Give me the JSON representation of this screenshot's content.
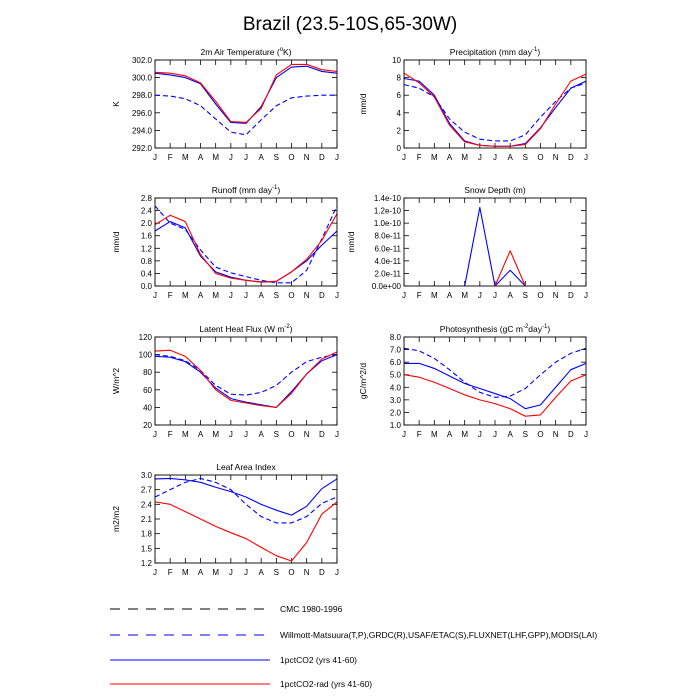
{
  "page_title": "Brazil (23.5-10S,65-30W)",
  "months": [
    "J",
    "F",
    "M",
    "A",
    "M",
    "J",
    "J",
    "A",
    "S",
    "O",
    "N",
    "D",
    "J"
  ],
  "colors": {
    "blue": "#0000ff",
    "red": "#ff0000",
    "black": "#000000"
  },
  "legend": [
    {
      "label": "CMC 1980-1996",
      "color": "#000000",
      "dash": true
    },
    {
      "label": "Willmott-Matsuura(T,P),GRDC(R),USAF/ETAC(S),FLUXNET(LHF,GPP),MODIS(LAI)",
      "color": "#0000ff",
      "dash": true
    },
    {
      "label": "1pctCO2 (yrs 41-60)",
      "color": "#0000ff",
      "dash": false
    },
    {
      "label": "1pctCO2-rad (yrs 41-60)",
      "color": "#ff0000",
      "dash": false
    }
  ],
  "chart_data": [
    {
      "type": "line",
      "title": "2m Air Temperature (°K)",
      "ylabel": "K",
      "ylim": [
        292,
        302
      ],
      "yticks": [
        "292.0",
        "294.0",
        "296.0",
        "298.0",
        "300.0",
        "302.0"
      ],
      "x": [
        "J",
        "F",
        "M",
        "A",
        "M",
        "J",
        "J",
        "A",
        "S",
        "O",
        "N",
        "D",
        "J"
      ],
      "series": [
        {
          "name": "Willmott-Matsuura(T,P),GRDC(R),USAF/ETAC(S),FLUXNET(LHF,GPP),MODIS(LAI)",
          "color": "#0000ff",
          "dash": true,
          "values": [
            298.0,
            297.9,
            297.6,
            296.8,
            295.3,
            293.8,
            293.5,
            295.2,
            296.8,
            297.7,
            297.9,
            298.0,
            298.0
          ]
        },
        {
          "name": "1pctCO2 (yrs 41-60)",
          "color": "#0000ff",
          "dash": false,
          "values": [
            300.5,
            300.3,
            300.0,
            299.3,
            297.0,
            294.9,
            294.8,
            296.7,
            300.0,
            301.2,
            301.3,
            300.7,
            300.5
          ]
        },
        {
          "name": "1pctCO2-rad (yrs 41-60)",
          "color": "#ff0000",
          "dash": false,
          "values": [
            300.6,
            300.5,
            300.2,
            299.4,
            297.3,
            295.0,
            294.9,
            296.5,
            300.3,
            301.5,
            301.5,
            300.9,
            300.7
          ]
        }
      ]
    },
    {
      "type": "line",
      "title": "Precipitation (mm day-1)",
      "ylabel": "mm/d",
      "ylim": [
        0,
        10
      ],
      "yticks": [
        "0",
        "2",
        "4",
        "6",
        "8",
        "10"
      ],
      "x": [
        "J",
        "F",
        "M",
        "A",
        "M",
        "J",
        "J",
        "A",
        "S",
        "O",
        "N",
        "D",
        "J"
      ],
      "series": [
        {
          "name": "Willmott-Matsuura(T,P),GRDC(R),USAF/ETAC(S),FLUXNET(LHF,GPP),MODIS(LAI)",
          "color": "#0000ff",
          "dash": true,
          "values": [
            7.2,
            6.8,
            5.8,
            3.3,
            1.8,
            1.0,
            0.8,
            0.8,
            1.5,
            3.5,
            5.3,
            6.8,
            7.4
          ]
        },
        {
          "name": "1pctCO2 (yrs 41-60)",
          "color": "#0000ff",
          "dash": false,
          "values": [
            7.9,
            7.6,
            6.0,
            2.8,
            0.8,
            0.3,
            0.2,
            0.2,
            0.5,
            2.3,
            4.6,
            6.8,
            7.6
          ]
        },
        {
          "name": "1pctCO2-rad (yrs 41-60)",
          "color": "#ff0000",
          "dash": false,
          "values": [
            8.5,
            7.4,
            5.8,
            2.6,
            0.7,
            0.3,
            0.2,
            0.2,
            0.4,
            2.2,
            5.0,
            7.6,
            8.4
          ]
        }
      ]
    },
    {
      "type": "line",
      "title": "Runoff (mm day-1)",
      "ylabel": "mm/d",
      "ylim": [
        0,
        2.8
      ],
      "yticks": [
        "0.0",
        "0.4",
        "0.8",
        "1.2",
        "1.6",
        "2.0",
        "2.4",
        "2.8"
      ],
      "x": [
        "J",
        "F",
        "M",
        "A",
        "M",
        "J",
        "J",
        "A",
        "S",
        "O",
        "N",
        "D",
        "J"
      ],
      "series": [
        {
          "name": "Willmott-Matsuura(T,P),GRDC(R),USAF/ETAC(S),FLUXNET(LHF,GPP),MODIS(LAI)",
          "color": "#0000ff",
          "dash": true,
          "values": [
            2.55,
            2.0,
            1.8,
            1.15,
            0.6,
            0.42,
            0.3,
            0.18,
            0.1,
            0.1,
            0.5,
            1.5,
            2.55
          ]
        },
        {
          "name": "1pctCO2 (yrs 41-60)",
          "color": "#0000ff",
          "dash": false,
          "values": [
            1.75,
            2.05,
            1.85,
            0.95,
            0.45,
            0.28,
            0.18,
            0.13,
            0.15,
            0.45,
            0.8,
            1.3,
            1.75
          ]
        },
        {
          "name": "1pctCO2-rad (yrs 41-60)",
          "color": "#ff0000",
          "dash": false,
          "values": [
            1.95,
            2.25,
            2.05,
            1.0,
            0.4,
            0.25,
            0.18,
            0.12,
            0.15,
            0.45,
            0.85,
            1.45,
            2.3
          ]
        }
      ]
    },
    {
      "type": "line",
      "title": "Snow Depth (m)",
      "ylabel": "mm/d",
      "ylim": [
        0,
        1.4e-10
      ],
      "yticks": [
        "0.0e+00",
        "2.0e-11",
        "4.0e-11",
        "6.0e-11",
        "8.0e-11",
        "1.0e-10",
        "1.2e-10",
        "1.4e-10"
      ],
      "x": [
        "J",
        "F",
        "M",
        "A",
        "M",
        "J",
        "J",
        "A",
        "S",
        "O",
        "N",
        "D",
        "J"
      ],
      "series": [
        {
          "name": "1pctCO2 (yrs 41-60)",
          "color": "#0000ff",
          "dash": false,
          "values": [
            null,
            null,
            null,
            null,
            0,
            1.25e-10,
            0,
            2.5e-11,
            0,
            null,
            null,
            null,
            null
          ]
        },
        {
          "name": "1pctCO2-rad (yrs 41-60)",
          "color": "#ff0000",
          "dash": false,
          "values": [
            null,
            null,
            null,
            null,
            null,
            null,
            0,
            5.6e-11,
            0,
            null,
            null,
            null,
            null
          ]
        }
      ]
    },
    {
      "type": "line",
      "title": "Latent Heat Flux (W m-2)",
      "ylabel": "W/m^2",
      "ylim": [
        20,
        120
      ],
      "yticks": [
        "20",
        "40",
        "60",
        "80",
        "100",
        "120"
      ],
      "x": [
        "J",
        "F",
        "M",
        "A",
        "M",
        "J",
        "J",
        "A",
        "S",
        "O",
        "N",
        "D",
        "J"
      ],
      "series": [
        {
          "name": "Willmott-Matsuura(T,P),GRDC(R),USAF/ETAC(S),FLUXNET(LHF,GPP),MODIS(LAI)",
          "color": "#0000ff",
          "dash": true,
          "values": [
            100,
            98,
            93,
            82,
            65,
            55,
            54,
            57,
            65,
            80,
            92,
            97,
            100
          ]
        },
        {
          "name": "1pctCO2 (yrs 41-60)",
          "color": "#0000ff",
          "dash": false,
          "values": [
            98,
            97,
            92,
            80,
            62,
            50,
            46,
            43,
            40,
            58,
            78,
            93,
            100
          ]
        },
        {
          "name": "1pctCO2-rad (yrs 41-60)",
          "color": "#ff0000",
          "dash": false,
          "values": [
            104,
            105,
            98,
            82,
            60,
            48,
            45,
            42,
            40,
            56,
            78,
            95,
            103
          ]
        }
      ]
    },
    {
      "type": "line",
      "title": "Photosynthesis (gC m-2day-1)",
      "ylabel": "gC/m^2/d",
      "ylim": [
        1.0,
        8.0
      ],
      "yticks": [
        "1.0",
        "2.0",
        "3.0",
        "4.0",
        "5.0",
        "6.0",
        "7.0",
        "8.0"
      ],
      "x": [
        "J",
        "F",
        "M",
        "A",
        "M",
        "J",
        "J",
        "A",
        "S",
        "O",
        "N",
        "D",
        "J"
      ],
      "series": [
        {
          "name": "Willmott-Matsuura(T,P),GRDC(R),USAF/ETAC(S),FLUXNET(LHF,GPP),MODIS(LAI)",
          "color": "#0000ff",
          "dash": true,
          "values": [
            7.1,
            6.9,
            6.3,
            5.4,
            4.4,
            3.6,
            3.2,
            3.3,
            3.9,
            5.0,
            6.0,
            6.7,
            7.1
          ]
        },
        {
          "name": "1pctCO2 (yrs 41-60)",
          "color": "#0000ff",
          "dash": false,
          "values": [
            5.9,
            5.9,
            5.5,
            4.9,
            4.3,
            3.9,
            3.5,
            3.1,
            2.3,
            2.6,
            4.0,
            5.4,
            5.9
          ]
        },
        {
          "name": "1pctCO2-rad (yrs 41-60)",
          "color": "#ff0000",
          "dash": false,
          "values": [
            5.0,
            4.8,
            4.4,
            3.9,
            3.4,
            3.0,
            2.7,
            2.3,
            1.7,
            1.8,
            3.2,
            4.5,
            5.0
          ]
        }
      ]
    },
    {
      "type": "line",
      "title": "Leaf Area Index",
      "ylabel": "m2/m2",
      "ylim": [
        1.2,
        3.0
      ],
      "yticks": [
        "1.2",
        "1.5",
        "1.8",
        "2.1",
        "2.4",
        "2.7",
        "3.0"
      ],
      "x": [
        "J",
        "F",
        "M",
        "A",
        "M",
        "J",
        "J",
        "A",
        "S",
        "O",
        "N",
        "D",
        "J"
      ],
      "series": [
        {
          "name": "Willmott-Matsuura(T,P),GRDC(R),USAF/ETAC(S),FLUXNET(LHF,GPP),MODIS(LAI)",
          "color": "#0000ff",
          "dash": true,
          "values": [
            2.55,
            2.7,
            2.85,
            2.93,
            2.85,
            2.7,
            2.4,
            2.15,
            2.02,
            2.02,
            2.15,
            2.42,
            2.55
          ]
        },
        {
          "name": "1pctCO2 (yrs 41-60)",
          "color": "#0000ff",
          "dash": false,
          "values": [
            2.92,
            2.93,
            2.9,
            2.85,
            2.75,
            2.66,
            2.55,
            2.4,
            2.28,
            2.18,
            2.36,
            2.72,
            2.92
          ]
        },
        {
          "name": "1pctCO2-rad (yrs 41-60)",
          "color": "#ff0000",
          "dash": false,
          "values": [
            2.45,
            2.4,
            2.25,
            2.1,
            1.95,
            1.82,
            1.7,
            1.52,
            1.35,
            1.24,
            1.62,
            2.2,
            2.45
          ]
        }
      ]
    }
  ]
}
